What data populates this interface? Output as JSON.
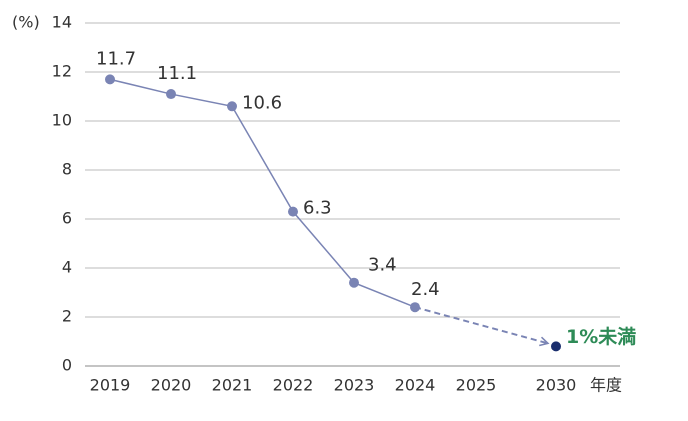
{
  "chart_data": {
    "type": "line",
    "y_unit_label": "(%)",
    "x_axis_label": "年度",
    "categories": [
      "2019",
      "2020",
      "2021",
      "2022",
      "2023",
      "2024",
      "2025",
      "2030"
    ],
    "series": [
      {
        "color": "#7a84b4",
        "values": [
          11.7,
          11.1,
          10.6,
          6.3,
          3.4,
          2.4,
          null,
          0.8
        ],
        "value_labels": [
          "11.7",
          "11.1",
          "10.6",
          "6.3",
          "3.4",
          "2.4",
          null,
          "1%未満"
        ]
      }
    ],
    "target_color": "#1b2f6e",
    "target_label_color": "#2e8b57",
    "ylim": [
      0,
      14
    ],
    "yticks": [
      0,
      2,
      4,
      6,
      8,
      10,
      12,
      14
    ],
    "grid": true
  }
}
